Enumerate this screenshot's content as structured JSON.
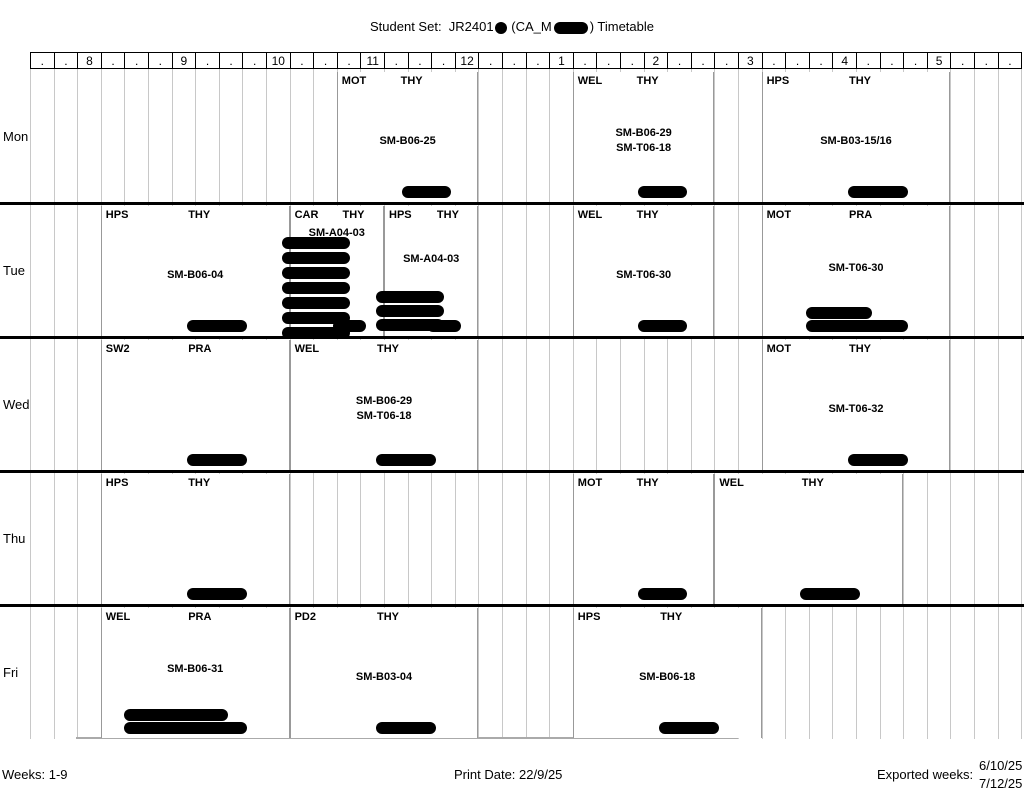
{
  "header": {
    "prefix": "Student Set:",
    "code": "JR2401",
    "group": "(CA_M",
    "suffix": ") Timetable"
  },
  "hours": [
    ".",
    ".",
    "8",
    ".",
    ".",
    ".",
    "9",
    ".",
    ".",
    ".",
    "10",
    ".",
    ".",
    ".",
    "11",
    ".",
    ".",
    ".",
    "12",
    ".",
    ".",
    ".",
    "1",
    ".",
    ".",
    ".",
    "2",
    ".",
    ".",
    ".",
    "3",
    ".",
    ".",
    ".",
    "4",
    ".",
    ".",
    ".",
    "5",
    ".",
    ".",
    "."
  ],
  "days": [
    "Mon",
    "Tue",
    "Wed",
    "Thu",
    "Fri"
  ],
  "blocks": [
    {
      "day": 0,
      "s": 13,
      "e": 19,
      "c1": "MOT",
      "c2": "THY",
      "rooms": [
        "SM-B06-25"
      ],
      "ry": 62
    },
    {
      "day": 0,
      "s": 23,
      "e": 29,
      "c1": "WEL",
      "c2": "THY",
      "rooms": [
        "SM-B06-29",
        "SM-T06-18"
      ],
      "ry": 54
    },
    {
      "day": 0,
      "s": 31,
      "e": 39,
      "c1": "HPS",
      "c2": "THY",
      "rooms": [
        "SM-B03-15/16"
      ],
      "ry": 62
    },
    {
      "day": 1,
      "s": 3,
      "e": 11,
      "c1": "HPS",
      "c2": "THY",
      "rooms": [
        "SM-B06-04"
      ],
      "ry": 62
    },
    {
      "day": 1,
      "s": 11,
      "e": 15,
      "c1": "CAR",
      "c2": "THY",
      "rooms": [
        "SM-A04-03"
      ],
      "ry": 20
    },
    {
      "day": 1,
      "s": 15,
      "e": 19,
      "c1": "HPS",
      "c2": "THY",
      "rooms": [
        "SM-A04-03"
      ],
      "ry": 46
    },
    {
      "day": 1,
      "s": 23,
      "e": 29,
      "c1": "WEL",
      "c2": "THY",
      "rooms": [
        "SM-T06-30"
      ],
      "ry": 62
    },
    {
      "day": 1,
      "s": 31,
      "e": 39,
      "c1": "MOT",
      "c2": "PRA",
      "rooms": [
        "SM-T06-30"
      ],
      "ry": 55
    },
    {
      "day": 2,
      "s": 3,
      "e": 11,
      "c1": "SW2",
      "c2": "PRA",
      "rooms": [],
      "ry": 0
    },
    {
      "day": 2,
      "s": 11,
      "e": 19,
      "c1": "WEL",
      "c2": "THY",
      "rooms": [
        "SM-B06-29",
        "SM-T06-18"
      ],
      "ry": 54
    },
    {
      "day": 2,
      "s": 31,
      "e": 39,
      "c1": "MOT",
      "c2": "THY",
      "rooms": [
        "SM-T06-32"
      ],
      "ry": 62
    },
    {
      "day": 3,
      "s": 3,
      "e": 11,
      "c1": "HPS",
      "c2": "THY",
      "rooms": [],
      "ry": 0
    },
    {
      "day": 3,
      "s": 23,
      "e": 29,
      "c1": "MOT",
      "c2": "THY",
      "rooms": [],
      "ry": 0
    },
    {
      "day": 3,
      "s": 29,
      "e": 37,
      "c1": "WEL",
      "c2": "THY",
      "rooms": [],
      "ry": 0
    },
    {
      "day": 4,
      "s": 3,
      "e": 11,
      "c1": "WEL",
      "c2": "PRA",
      "rooms": [
        "SM-B06-31"
      ],
      "ry": 54
    },
    {
      "day": 4,
      "s": 11,
      "e": 19,
      "c1": "PD2",
      "c2": "THY",
      "rooms": [
        "SM-B03-04"
      ],
      "ry": 62
    },
    {
      "day": 4,
      "s": 23,
      "e": 31,
      "c1": "HPS",
      "c2": "THY",
      "rooms": [
        "SM-B06-18"
      ],
      "ry": 62
    }
  ],
  "footer": {
    "weeks": "Weeks: 1-9",
    "print": "Print Date:  22/9/25",
    "exported_label": "Exported weeks:",
    "exported_from": "6/10/25",
    "exported_to": "7/12/25"
  }
}
